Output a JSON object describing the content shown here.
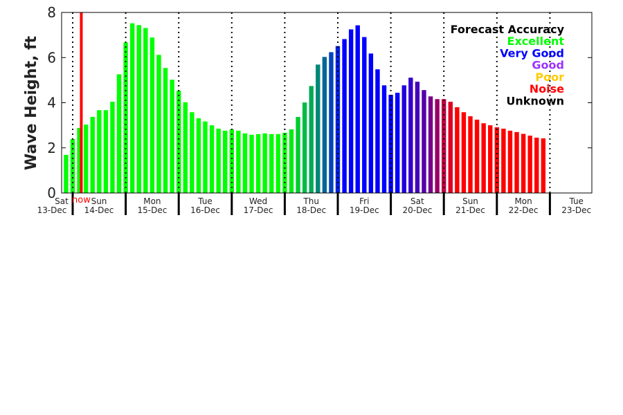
{
  "chart_data": {
    "type": "bar",
    "title": "",
    "xlabel": "",
    "ylabel": "Wave Height, ft",
    "ylim": [
      0,
      8
    ],
    "yticks": [
      0,
      2,
      4,
      6,
      8
    ],
    "interval_hours": 3,
    "first_bar": "13-Dec 21:00",
    "now_hours_after_14dec_0000": 3.9,
    "now_label": "now",
    "now_color": "#ff0000",
    "days": [
      {
        "name": "Sat",
        "date": "13-Dec"
      },
      {
        "name": "Sun",
        "date": "14-Dec"
      },
      {
        "name": "Mon",
        "date": "15-Dec"
      },
      {
        "name": "Tue",
        "date": "16-Dec"
      },
      {
        "name": "Wed",
        "date": "17-Dec"
      },
      {
        "name": "Thu",
        "date": "18-Dec"
      },
      {
        "name": "Fri",
        "date": "19-Dec"
      },
      {
        "name": "Sat",
        "date": "20-Dec"
      },
      {
        "name": "Sun",
        "date": "21-Dec"
      },
      {
        "name": "Mon",
        "date": "22-Dec"
      },
      {
        "name": "Tue",
        "date": "23-Dec"
      }
    ],
    "values": [
      1.69,
      2.39,
      2.88,
      3.03,
      3.37,
      3.67,
      3.67,
      4.04,
      5.26,
      6.67,
      7.52,
      7.44,
      7.31,
      6.89,
      6.12,
      5.54,
      5.02,
      4.53,
      4.02,
      3.58,
      3.31,
      3.17,
      3.0,
      2.85,
      2.76,
      2.82,
      2.76,
      2.64,
      2.58,
      2.61,
      2.64,
      2.61,
      2.61,
      2.67,
      2.82,
      3.37,
      4.01,
      4.74,
      5.69,
      6.03,
      6.24,
      6.51,
      6.82,
      7.25,
      7.43,
      6.91,
      6.18,
      5.48,
      4.77,
      4.35,
      4.44,
      4.77,
      5.11,
      4.93,
      4.56,
      4.28,
      4.16,
      4.16,
      4.04,
      3.8,
      3.58,
      3.4,
      3.25,
      3.09,
      3.0,
      2.91,
      2.85,
      2.76,
      2.7,
      2.62,
      2.54,
      2.45,
      2.42
    ],
    "colors": [
      "#00ff00",
      "#00ff00",
      "#00ff00",
      "#00ff00",
      "#00ff00",
      "#00ff00",
      "#00ff00",
      "#00ff00",
      "#00ff00",
      "#00ff00",
      "#00ff00",
      "#00ff00",
      "#00ff00",
      "#00ff00",
      "#00ff00",
      "#00ff00",
      "#00ff00",
      "#00ff00",
      "#00ff00",
      "#00ff00",
      "#00ff00",
      "#00ff00",
      "#00ff00",
      "#00ff00",
      "#00ff00",
      "#00ff00",
      "#00ff00",
      "#00ff00",
      "#00ff00",
      "#00ff00",
      "#00ff00",
      "#00ff00",
      "#00ff00",
      "#00ff00",
      "#00ee11",
      "#00cc33",
      "#00bb44",
      "#00aa55",
      "#008877",
      "#006699",
      "#0044bb",
      "#0022dd",
      "#0000ff",
      "#0000ff",
      "#0000ff",
      "#0000ff",
      "#0000ff",
      "#0000ff",
      "#0000ff",
      "#0000ff",
      "#0000ff",
      "#2200dd",
      "#3300cc",
      "#4400bb",
      "#5500aa",
      "#770088",
      "#990066",
      "#bb0044",
      "#dd0022",
      "#ff0000",
      "#ff0000",
      "#ff0000",
      "#ff0000",
      "#ff0000",
      "#ff0000",
      "#ff0000",
      "#ff0000",
      "#ff0000",
      "#ff0000",
      "#ff0000",
      "#ff0000",
      "#ff0000",
      "#ff0000"
    ],
    "legend": {
      "title": "Forecast Accuracy",
      "placement": "top-right",
      "entries": [
        {
          "label": "Excellent",
          "color": "#00ff00"
        },
        {
          "label": "Very Good",
          "color": "#0000ff"
        },
        {
          "label": "Good",
          "color": "#9933ff"
        },
        {
          "label": "Poor",
          "color": "#ffcc00"
        },
        {
          "label": "Noise",
          "color": "#ff0000"
        },
        {
          "label": "Unknown",
          "color": "#000000"
        }
      ]
    }
  }
}
